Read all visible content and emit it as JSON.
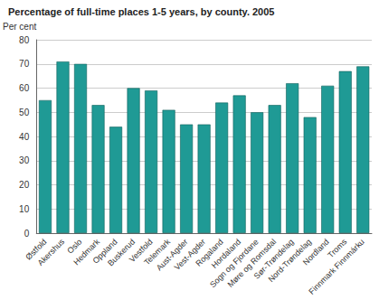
{
  "chart_data": {
    "type": "bar",
    "title": "Percentage of full-time places 1-5 years, by county. 2005",
    "ylabel": "Per cent",
    "categories": [
      "Østfold",
      "Akershus",
      "Oslo",
      "Hedmark",
      "Oppland",
      "Buskerud",
      "Vestfold",
      "Telemark",
      "Aust-Agder",
      "Vest-Agder",
      "Rogaland",
      "Hordaland",
      "Sogn og Fjordane",
      "Møre og Romsdal",
      "Sør-Trøndelag",
      "Nord-Trøndelag",
      "Nordland",
      "Troms",
      "Finnmark Finnmárku"
    ],
    "values": [
      55,
      71,
      70,
      53,
      44,
      60,
      59,
      51,
      45,
      45,
      54,
      57,
      50,
      53,
      62,
      48,
      61,
      67,
      69
    ],
    "color": "#1f9a95",
    "ylim": [
      0,
      80
    ],
    "yticks": [
      0,
      10,
      20,
      30,
      40,
      50,
      60,
      70,
      80
    ],
    "grid": true
  }
}
